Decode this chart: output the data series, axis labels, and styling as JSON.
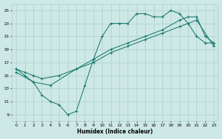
{
  "xlabel": "Humidex (Indice chaleur)",
  "xlim": [
    -0.5,
    23.5
  ],
  "ylim": [
    8,
    26
  ],
  "xticks": [
    0,
    1,
    2,
    3,
    4,
    5,
    6,
    7,
    8,
    9,
    10,
    11,
    12,
    13,
    14,
    15,
    16,
    17,
    18,
    19,
    20,
    21,
    22,
    23
  ],
  "yticks": [
    9,
    11,
    13,
    15,
    17,
    19,
    21,
    23,
    25
  ],
  "bg_color": "#cde8e5",
  "grid_color": "#aacfcc",
  "line_color": "#1a7a6e",
  "line1_x": [
    0,
    1,
    2,
    3,
    4,
    5,
    6,
    7,
    8,
    9,
    10,
    11,
    12,
    13,
    14,
    15,
    16,
    17,
    18,
    19,
    20,
    21,
    22,
    23
  ],
  "line1_y": [
    16,
    15,
    14,
    12,
    11,
    10.5,
    9,
    9.5,
    13.5,
    17.5,
    21,
    23,
    23,
    23,
    24.5,
    24.5,
    24,
    24,
    25,
    24.5,
    23,
    21,
    20,
    20
  ],
  "line2_x": [
    0,
    1,
    2,
    3,
    5,
    7,
    9,
    11,
    13,
    15,
    17,
    19,
    20,
    21,
    22,
    23
  ],
  "line2_y": [
    16,
    15.5,
    15,
    14.5,
    15,
    16,
    17.5,
    19,
    20,
    21,
    22,
    23.5,
    24,
    24,
    21,
    20
  ],
  "line3_x": [
    0,
    2,
    4,
    7,
    9,
    11,
    13,
    15,
    17,
    19,
    21,
    23
  ],
  "line3_y": [
    15.5,
    14,
    13.5,
    16,
    17,
    18.5,
    19.5,
    20.5,
    21.5,
    22.5,
    23.5,
    19.5
  ]
}
